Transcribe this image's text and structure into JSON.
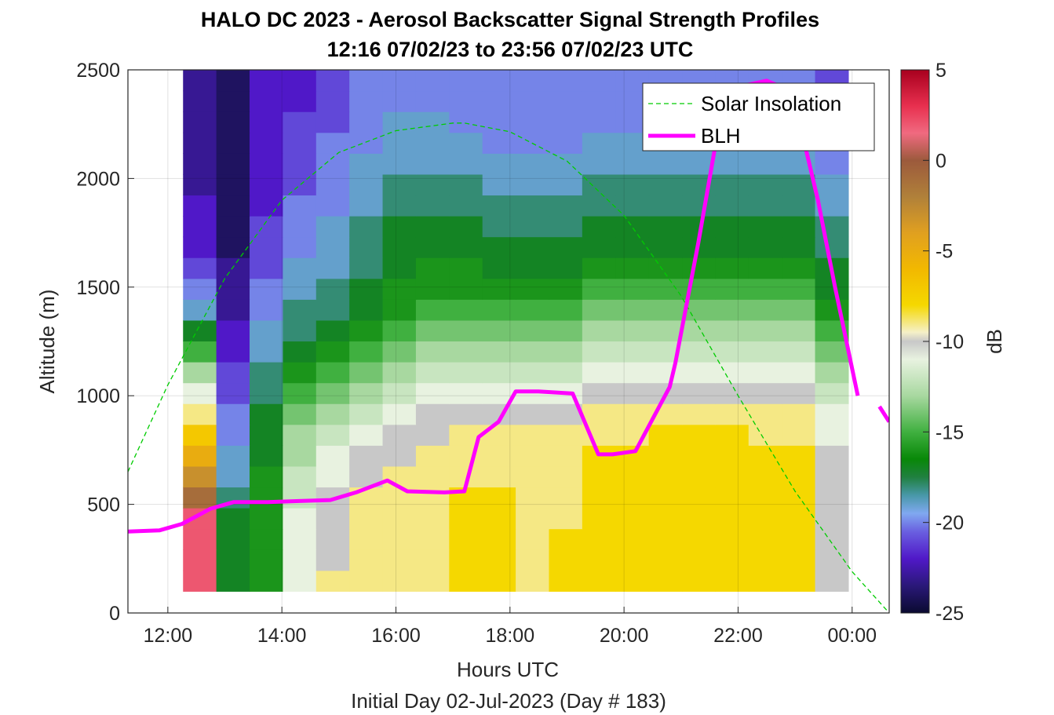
{
  "title_line1": "HALO DC 2023 - Aerosol Backscatter Signal Strength Profiles",
  "title_line2": "12:16 07/02/23 to 23:56 07/02/23  UTC",
  "xlabel": "Hours UTC",
  "xlabel2": "Initial Day 02-Jul-2023 (Day # 183)",
  "ylabel": "Altitude (m)",
  "colorbar_label": "dB",
  "legend": {
    "solar": "Solar Insolation",
    "blh": "BLH"
  },
  "colors": {
    "solar": "#00cc00",
    "blh": "#ff00ff"
  },
  "chart_data": {
    "type": "heatmap",
    "x_axis": {
      "min": 11.3,
      "max": 24.65,
      "ticks": [
        12,
        14,
        16,
        18,
        20,
        22,
        24
      ],
      "tick_labels": [
        "12:00",
        "14:00",
        "16:00",
        "18:00",
        "20:00",
        "22:00",
        "00:00"
      ]
    },
    "y_axis": {
      "min": 0,
      "max": 2500,
      "ticks": [
        0,
        500,
        1000,
        1500,
        2000,
        2500
      ],
      "tick_labels": [
        "0",
        "500",
        "1000",
        "1500",
        "2000",
        "2500"
      ]
    },
    "colorbar": {
      "min": -25,
      "max": 5,
      "ticks": [
        5,
        0,
        -5,
        -10,
        -15,
        -20,
        -25
      ],
      "tick_labels": [
        "5",
        "0",
        "-5",
        "-10",
        "-15",
        "-20",
        "-25"
      ]
    },
    "heatmap": {
      "x_start": 12.2667,
      "x_end": 23.9333,
      "y_start": 100,
      "y_end": 2500,
      "time_cols": [
        12.4,
        13.0,
        13.6,
        14.2,
        14.8,
        15.4,
        16.0,
        16.6,
        17.2,
        17.8,
        18.4,
        19.0,
        19.6,
        20.2,
        20.8,
        21.4,
        22.0,
        22.6,
        23.2,
        23.9
      ],
      "alt_rows": [
        100,
        200,
        300,
        400,
        500,
        600,
        700,
        800,
        900,
        1000,
        1100,
        1200,
        1300,
        1400,
        1500,
        1600,
        1700,
        1800,
        1900,
        2000,
        2100,
        2200,
        2300,
        2400,
        2500
      ],
      "values_db": [
        [
          2,
          -17,
          -16,
          -11,
          -9,
          -9,
          -9,
          -9,
          -8,
          -8,
          -9,
          -8,
          -8,
          -8,
          -8,
          -8,
          -8,
          -8,
          -8,
          -10
        ],
        [
          2,
          -17,
          -16,
          -11,
          -10,
          -9,
          -9,
          -9,
          -8,
          -8,
          -9,
          -8,
          -8,
          -8,
          -8,
          -8,
          -8,
          -8,
          -8,
          -10
        ],
        [
          2,
          -17,
          -16,
          -11,
          -10,
          -9,
          -9,
          -9,
          -8,
          -8,
          -9,
          -8,
          -8,
          -8,
          -8,
          -8,
          -8,
          -8,
          -8,
          -10
        ],
        [
          2,
          -17,
          -16,
          -11,
          -10,
          -9,
          -9,
          -9,
          -8,
          -8,
          -9,
          -9,
          -8,
          -8,
          -8,
          -8,
          -8,
          -8,
          -8,
          -10
        ],
        [
          -1,
          -18,
          -16,
          -12,
          -10,
          -9,
          -9,
          -9,
          -8,
          -8,
          -9,
          -9,
          -8,
          -8,
          -8,
          -8,
          -8,
          -8,
          -8,
          -10
        ],
        [
          -3,
          -19,
          -16,
          -12,
          -11,
          -10,
          -9,
          -9,
          -9,
          -9,
          -9,
          -9,
          -8,
          -8,
          -8,
          -8,
          -8,
          -8,
          -8,
          -10
        ],
        [
          -5,
          -19,
          -17,
          -13,
          -11,
          -10,
          -10,
          -9,
          -9,
          -9,
          -9,
          -9,
          -8,
          -8,
          -8,
          -8,
          -8,
          -8,
          -8,
          -10
        ],
        [
          -7,
          -20,
          -17,
          -13,
          -12,
          -11,
          -10,
          -10,
          -9,
          -9,
          -9,
          -9,
          -9,
          -9,
          -8,
          -8,
          -8,
          -9,
          -9,
          -11
        ],
        [
          -9,
          -20,
          -17,
          -14,
          -13,
          -12,
          -11,
          -10,
          -10,
          -10,
          -10,
          -10,
          -9,
          -9,
          -9,
          -9,
          -9,
          -9,
          -9,
          -11
        ],
        [
          -11,
          -21,
          -18,
          -15,
          -14,
          -13,
          -12,
          -11,
          -11,
          -11,
          -11,
          -11,
          -10,
          -10,
          -10,
          -10,
          -10,
          -10,
          -10,
          -12
        ],
        [
          -13,
          -21,
          -18,
          -16,
          -15,
          -14,
          -13,
          -12,
          -12,
          -12,
          -12,
          -12,
          -11,
          -11,
          -11,
          -11,
          -11,
          -11,
          -11,
          -13
        ],
        [
          -15,
          -22,
          -19,
          -17,
          -16,
          -15,
          -14,
          -13,
          -13,
          -13,
          -13,
          -13,
          -12,
          -12,
          -12,
          -12,
          -12,
          -12,
          -12,
          -14
        ],
        [
          -17,
          -22,
          -19,
          -18,
          -17,
          -16,
          -15,
          -14,
          -14,
          -14,
          -14,
          -14,
          -13,
          -13,
          -13,
          -13,
          -13,
          -13,
          -13,
          -15
        ],
        [
          -19,
          -23,
          -20,
          -18,
          -18,
          -17,
          -16,
          -15,
          -15,
          -15,
          -15,
          -15,
          -14,
          -14,
          -14,
          -14,
          -14,
          -14,
          -14,
          -16
        ],
        [
          -20,
          -23,
          -20,
          -19,
          -18,
          -17,
          -16,
          -16,
          -16,
          -16,
          -16,
          -16,
          -15,
          -15,
          -15,
          -15,
          -15,
          -15,
          -15,
          -17
        ],
        [
          -21,
          -23,
          -21,
          -19,
          -19,
          -18,
          -17,
          -16,
          -16,
          -17,
          -17,
          -17,
          -16,
          -16,
          -16,
          -16,
          -16,
          -16,
          -16,
          -17
        ],
        [
          -22,
          -24,
          -21,
          -20,
          -19,
          -18,
          -17,
          -17,
          -17,
          -17,
          -17,
          -17,
          -17,
          -17,
          -17,
          -17,
          -17,
          -17,
          -17,
          -18
        ],
        [
          -22,
          -24,
          -21,
          -20,
          -19,
          -18,
          -17,
          -17,
          -17,
          -18,
          -18,
          -18,
          -17,
          -17,
          -17,
          -17,
          -17,
          -17,
          -17,
          -18
        ],
        [
          -22,
          -24,
          -22,
          -20,
          -20,
          -19,
          -18,
          -18,
          -18,
          -18,
          -18,
          -18,
          -18,
          -18,
          -18,
          -18,
          -18,
          -18,
          -18,
          -19
        ],
        [
          -23,
          -24,
          -22,
          -21,
          -20,
          -19,
          -18,
          -18,
          -18,
          -19,
          -19,
          -19,
          -18,
          -18,
          -18,
          -18,
          -18,
          -18,
          -18,
          -19
        ],
        [
          -23,
          -24,
          -22,
          -21,
          -20,
          -19,
          -19,
          -19,
          -19,
          -19,
          -19,
          -19,
          -19,
          -19,
          -19,
          -19,
          -19,
          -19,
          -19,
          -20
        ],
        [
          -23,
          -24,
          -22,
          -21,
          -20,
          -20,
          -19,
          -19,
          -19,
          -20,
          -20,
          -20,
          -19,
          -19,
          -19,
          -19,
          -19,
          -19,
          -19,
          -20
        ],
        [
          -23,
          -24,
          -22,
          -21,
          -21,
          -20,
          -19,
          -19,
          -20,
          -20,
          -20,
          -20,
          -20,
          -20,
          -20,
          -20,
          -20,
          -20,
          -20,
          -20
        ],
        [
          -23,
          -24,
          -22,
          -22,
          -21,
          -20,
          -20,
          -20,
          -20,
          -20,
          -20,
          -20,
          -20,
          -20,
          -20,
          -20,
          -20,
          -20,
          -20,
          -21
        ],
        [
          -23,
          -24,
          -22,
          -22,
          -21,
          -20,
          -20,
          -20,
          -20,
          -20,
          -20,
          -20,
          -20,
          -20,
          -20,
          -20,
          -20,
          -20,
          -20,
          -21
        ]
      ]
    },
    "series": [
      {
        "name": "Solar Insolation",
        "style": "dashed",
        "x": [
          11.3,
          12.0,
          13.0,
          14.0,
          15.0,
          16.0,
          17.0,
          17.2,
          18.0,
          19.0,
          20.0,
          21.0,
          22.0,
          23.0,
          24.0,
          24.65
        ],
        "y": [
          650,
          1050,
          1540,
          1900,
          2120,
          2220,
          2255,
          2255,
          2215,
          2080,
          1830,
          1460,
          1000,
          560,
          190,
          0
        ]
      },
      {
        "name": "BLH",
        "style": "solid",
        "x": [
          11.3,
          11.85,
          12.25,
          12.75,
          13.15,
          13.75,
          14.3,
          14.85,
          15.3,
          15.85,
          16.2,
          16.85,
          17.2,
          17.45,
          17.8,
          18.1,
          18.5,
          19.1,
          19.55,
          19.8,
          20.2,
          20.8,
          20.9,
          21.3,
          21.7,
          22.05,
          22.5,
          22.95,
          23.4,
          23.7,
          24.1
        ],
        "y": [
          375,
          380,
          410,
          480,
          510,
          510,
          515,
          520,
          555,
          610,
          560,
          555,
          560,
          810,
          880,
          1020,
          1020,
          1010,
          730,
          730,
          745,
          1040,
          1150,
          1700,
          2300,
          2425,
          2450,
          2400,
          1900,
          1500,
          1000
        ]
      },
      {
        "name": "BLH-tail",
        "x": [
          24.48,
          24.65
        ],
        "y": [
          950,
          880
        ]
      }
    ]
  }
}
